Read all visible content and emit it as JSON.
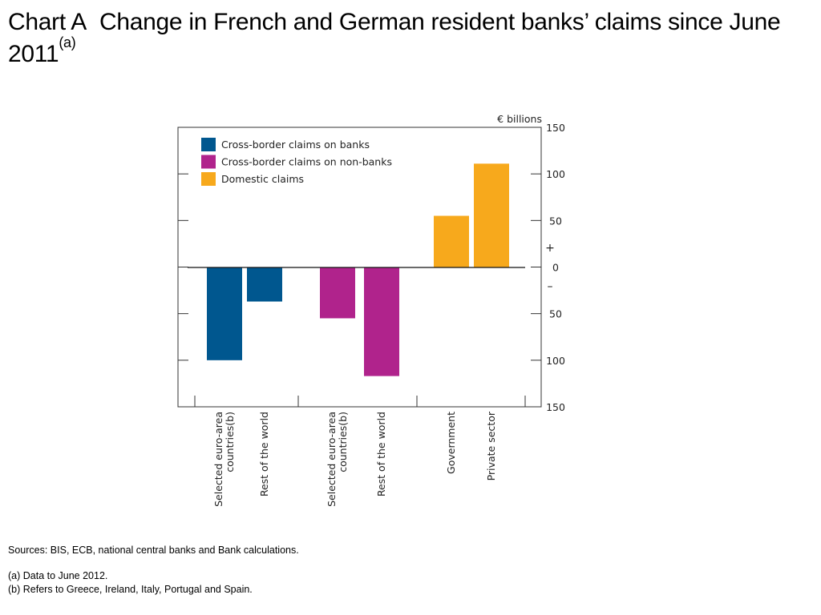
{
  "title": {
    "prefix": "Chart A",
    "main": "Change in French and German resident banks’ claims since June 2011",
    "marker": "(a)"
  },
  "chart_data": {
    "type": "bar",
    "unit_label": "€ billions",
    "ylim": [
      -150,
      150
    ],
    "y_ticks": [
      150,
      100,
      50,
      0,
      -50,
      -100,
      -150
    ],
    "y_tick_labels": [
      "150",
      "100",
      "50",
      "0",
      "50",
      "100",
      "150"
    ],
    "sign_labels": {
      "positive": "+",
      "negative": "–"
    },
    "legend": [
      {
        "label": "Cross-border claims on banks",
        "color": "#00578f"
      },
      {
        "label": "Cross-border claims on non-banks",
        "color": "#b0238c"
      },
      {
        "label": "Domestic claims",
        "color": "#f7a91c"
      }
    ],
    "legend_position": "top-left",
    "groups": [
      {
        "series": "Cross-border claims on banks",
        "color": "#00578f",
        "bars": [
          {
            "category": [
              "Selected euro-area",
              "countries(b)"
            ],
            "value": -100
          },
          {
            "category": [
              "Rest of the world"
            ],
            "value": -37
          }
        ]
      },
      {
        "series": "Cross-border claims on non-banks",
        "color": "#b0238c",
        "bars": [
          {
            "category": [
              "Selected euro-area",
              "countries(b)"
            ],
            "value": -55
          },
          {
            "category": [
              "Rest of the world"
            ],
            "value": -117
          }
        ]
      },
      {
        "series": "Domestic claims",
        "color": "#f7a91c",
        "bars": [
          {
            "category": [
              "Government"
            ],
            "value": 55
          },
          {
            "category": [
              "Private sector"
            ],
            "value": 111
          }
        ]
      }
    ],
    "grid": false
  },
  "notes": {
    "sources": "Sources:  BIS, ECB, national central banks and Bank calculations.",
    "footnote_a": "(a)  Data to June 2012.",
    "footnote_b": "(b)  Refers to Greece, Ireland, Italy, Portugal and Spain."
  }
}
